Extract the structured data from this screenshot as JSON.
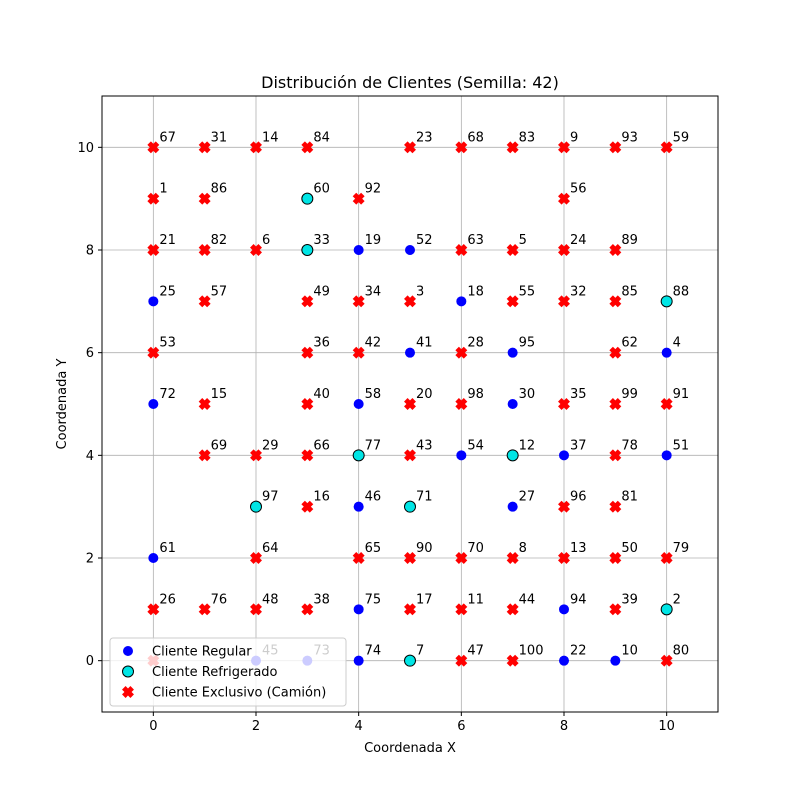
{
  "chart_data": {
    "type": "scatter",
    "title": "Distribución de Clientes (Semilla: 42)",
    "xlabel": "Coordenada X",
    "ylabel": "Coordenada Y",
    "xlim": [
      -1,
      11
    ],
    "ylim": [
      -1,
      11
    ],
    "xticks": [
      0,
      2,
      4,
      6,
      8,
      10
    ],
    "yticks": [
      0,
      2,
      4,
      6,
      8,
      10
    ],
    "grid": true,
    "legend_position": "lower-left",
    "series": [
      {
        "name": "Cliente Regular",
        "marker": "circle",
        "color": "#0000ff",
        "points": [
          {
            "x": 4,
            "y": 8,
            "label": "19"
          },
          {
            "x": 5,
            "y": 8,
            "label": "52"
          },
          {
            "x": 0,
            "y": 7,
            "label": "25"
          },
          {
            "x": 6,
            "y": 7,
            "label": "18"
          },
          {
            "x": 5,
            "y": 6,
            "label": "41"
          },
          {
            "x": 7,
            "y": 6,
            "label": "95"
          },
          {
            "x": 10,
            "y": 6,
            "label": "4"
          },
          {
            "x": 0,
            "y": 5,
            "label": "72"
          },
          {
            "x": 4,
            "y": 5,
            "label": "58"
          },
          {
            "x": 7,
            "y": 5,
            "label": "30"
          },
          {
            "x": 6,
            "y": 4,
            "label": "54"
          },
          {
            "x": 8,
            "y": 4,
            "label": "37"
          },
          {
            "x": 10,
            "y": 4,
            "label": "51"
          },
          {
            "x": 4,
            "y": 3,
            "label": "46"
          },
          {
            "x": 7,
            "y": 3,
            "label": "27"
          },
          {
            "x": 0,
            "y": 2,
            "label": "61"
          },
          {
            "x": 4,
            "y": 1,
            "label": "75"
          },
          {
            "x": 8,
            "y": 1,
            "label": "94"
          },
          {
            "x": 2,
            "y": 0,
            "label": "45"
          },
          {
            "x": 3,
            "y": 0,
            "label": "73"
          },
          {
            "x": 4,
            "y": 0,
            "label": "74"
          },
          {
            "x": 8,
            "y": 0,
            "label": "22"
          },
          {
            "x": 9,
            "y": 0,
            "label": "10"
          }
        ]
      },
      {
        "name": "Cliente Refrigerado",
        "marker": "circle-outlined",
        "color": "#00e5e5",
        "points": [
          {
            "x": 3,
            "y": 9,
            "label": "60"
          },
          {
            "x": 3,
            "y": 8,
            "label": "33"
          },
          {
            "x": 10,
            "y": 7,
            "label": "88"
          },
          {
            "x": 4,
            "y": 4,
            "label": "77"
          },
          {
            "x": 7,
            "y": 4,
            "label": "12"
          },
          {
            "x": 2,
            "y": 3,
            "label": "97"
          },
          {
            "x": 5,
            "y": 3,
            "label": "71"
          },
          {
            "x": 10,
            "y": 1,
            "label": "2"
          },
          {
            "x": 5,
            "y": 0,
            "label": "7"
          }
        ]
      },
      {
        "name": "Cliente Exclusivo (Camión)",
        "marker": "x",
        "color": "#ff0000",
        "points": [
          {
            "x": 0,
            "y": 10,
            "label": "67"
          },
          {
            "x": 1,
            "y": 10,
            "label": "31"
          },
          {
            "x": 2,
            "y": 10,
            "label": "14"
          },
          {
            "x": 3,
            "y": 10,
            "label": "84"
          },
          {
            "x": 5,
            "y": 10,
            "label": "23"
          },
          {
            "x": 6,
            "y": 10,
            "label": "68"
          },
          {
            "x": 7,
            "y": 10,
            "label": "83"
          },
          {
            "x": 8,
            "y": 10,
            "label": "9"
          },
          {
            "x": 9,
            "y": 10,
            "label": "93"
          },
          {
            "x": 10,
            "y": 10,
            "label": "59"
          },
          {
            "x": 0,
            "y": 9,
            "label": "1"
          },
          {
            "x": 1,
            "y": 9,
            "label": "86"
          },
          {
            "x": 4,
            "y": 9,
            "label": "92"
          },
          {
            "x": 8,
            "y": 9,
            "label": "56"
          },
          {
            "x": 0,
            "y": 8,
            "label": "21"
          },
          {
            "x": 1,
            "y": 8,
            "label": "82"
          },
          {
            "x": 2,
            "y": 8,
            "label": "6"
          },
          {
            "x": 6,
            "y": 8,
            "label": "63"
          },
          {
            "x": 7,
            "y": 8,
            "label": "5"
          },
          {
            "x": 8,
            "y": 8,
            "label": "24"
          },
          {
            "x": 9,
            "y": 8,
            "label": "89"
          },
          {
            "x": 1,
            "y": 7,
            "label": "57"
          },
          {
            "x": 3,
            "y": 7,
            "label": "49"
          },
          {
            "x": 4,
            "y": 7,
            "label": "34"
          },
          {
            "x": 5,
            "y": 7,
            "label": "3"
          },
          {
            "x": 7,
            "y": 7,
            "label": "55"
          },
          {
            "x": 8,
            "y": 7,
            "label": "32"
          },
          {
            "x": 9,
            "y": 7,
            "label": "85"
          },
          {
            "x": 0,
            "y": 6,
            "label": "53"
          },
          {
            "x": 3,
            "y": 6,
            "label": "36"
          },
          {
            "x": 4,
            "y": 6,
            "label": "42"
          },
          {
            "x": 6,
            "y": 6,
            "label": "28"
          },
          {
            "x": 9,
            "y": 6,
            "label": "62"
          },
          {
            "x": 1,
            "y": 5,
            "label": "15"
          },
          {
            "x": 3,
            "y": 5,
            "label": "40"
          },
          {
            "x": 5,
            "y": 5,
            "label": "20"
          },
          {
            "x": 6,
            "y": 5,
            "label": "98"
          },
          {
            "x": 8,
            "y": 5,
            "label": "35"
          },
          {
            "x": 9,
            "y": 5,
            "label": "99"
          },
          {
            "x": 10,
            "y": 5,
            "label": "91"
          },
          {
            "x": 1,
            "y": 4,
            "label": "69"
          },
          {
            "x": 2,
            "y": 4,
            "label": "29"
          },
          {
            "x": 3,
            "y": 4,
            "label": "66"
          },
          {
            "x": 5,
            "y": 4,
            "label": "43"
          },
          {
            "x": 9,
            "y": 4,
            "label": "78"
          },
          {
            "x": 3,
            "y": 3,
            "label": "16"
          },
          {
            "x": 8,
            "y": 3,
            "label": "96"
          },
          {
            "x": 9,
            "y": 3,
            "label": "81"
          },
          {
            "x": 2,
            "y": 2,
            "label": "64"
          },
          {
            "x": 4,
            "y": 2,
            "label": "65"
          },
          {
            "x": 5,
            "y": 2,
            "label": "90"
          },
          {
            "x": 6,
            "y": 2,
            "label": "70"
          },
          {
            "x": 7,
            "y": 2,
            "label": "8"
          },
          {
            "x": 8,
            "y": 2,
            "label": "13"
          },
          {
            "x": 9,
            "y": 2,
            "label": "50"
          },
          {
            "x": 10,
            "y": 2,
            "label": "79"
          },
          {
            "x": 0,
            "y": 1,
            "label": "26"
          },
          {
            "x": 1,
            "y": 1,
            "label": "76"
          },
          {
            "x": 2,
            "y": 1,
            "label": "48"
          },
          {
            "x": 3,
            "y": 1,
            "label": "38"
          },
          {
            "x": 5,
            "y": 1,
            "label": "17"
          },
          {
            "x": 6,
            "y": 1,
            "label": "11"
          },
          {
            "x": 7,
            "y": 1,
            "label": "44"
          },
          {
            "x": 9,
            "y": 1,
            "label": "39"
          },
          {
            "x": 6,
            "y": 0,
            "label": "47"
          },
          {
            "x": 7,
            "y": 0,
            "label": "100"
          },
          {
            "x": 10,
            "y": 0,
            "label": "80"
          },
          {
            "x": 0,
            "y": 0,
            "label": ""
          }
        ]
      }
    ]
  }
}
